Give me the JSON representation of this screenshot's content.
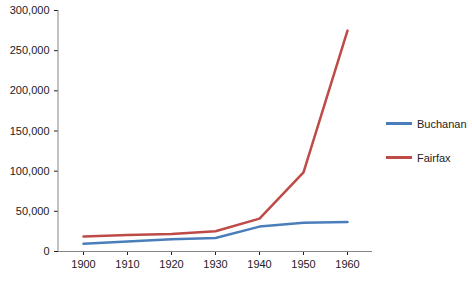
{
  "chart_data": {
    "type": "line",
    "categories": [
      "1900",
      "1910",
      "1920",
      "1930",
      "1940",
      "1950",
      "1960"
    ],
    "series": [
      {
        "name": "Buchanan",
        "color": "#4a7ebb",
        "values": [
          9700,
          12300,
          15400,
          16700,
          31000,
          35700,
          36700
        ]
      },
      {
        "name": "Fairfax",
        "color": "#be4b48",
        "values": [
          18600,
          20500,
          21900,
          25300,
          40900,
          98600,
          275000
        ]
      }
    ],
    "ylim": [
      0,
      300000
    ],
    "yticks": [
      0,
      {
        "value": 50000,
        "label": "50,000"
      },
      {
        "value": 100000,
        "label": "100,000"
      },
      {
        "value": 150000,
        "label": "150,000"
      },
      {
        "value": 200000,
        "label": "200,000"
      },
      {
        "value": 250000,
        "label": "250,000"
      },
      {
        "value": 300000,
        "label": "300,000"
      }
    ],
    "grid": false,
    "legend": "right"
  }
}
